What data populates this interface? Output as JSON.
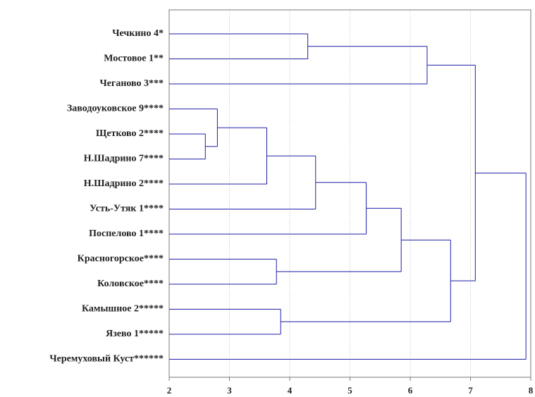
{
  "chart_data": {
    "type": "dendrogram",
    "orientation": "horizontal",
    "grid": true,
    "line_color": "#1f1fa8",
    "grid_color": "#bcbcbc",
    "xlim": [
      2,
      8
    ],
    "x_ticks": [
      2,
      3,
      4,
      5,
      6,
      7,
      8
    ],
    "x_tick_labels": [
      "2",
      "3",
      "4",
      "5",
      "6",
      "7",
      "8"
    ],
    "leaves": [
      "Чечкино 4*",
      "Мостовое 1**",
      "Чеганово 3***",
      "Заводоуковское 9****",
      "Щетково 2****",
      "Н.Шадрино 7****",
      "Н.Шадрино 2****",
      "Усть-Утяк 1****",
      "Поспелово 1****",
      "Красногорское****",
      "Коловское****",
      "Камышное 2*****",
      "Язево 1*****",
      "Черемуховый Куст******"
    ],
    "merges": [
      {
        "a": 4,
        "b": 5,
        "distance": 2.6
      },
      {
        "a": 3,
        "b": 14,
        "distance": 2.8
      },
      {
        "a": 15,
        "b": 6,
        "distance": 3.62
      },
      {
        "a": 9,
        "b": 10,
        "distance": 3.78
      },
      {
        "a": 11,
        "b": 12,
        "distance": 3.85
      },
      {
        "a": 0,
        "b": 1,
        "distance": 4.3
      },
      {
        "a": 16,
        "b": 7,
        "distance": 4.43
      },
      {
        "a": 20,
        "b": 8,
        "distance": 5.27
      },
      {
        "a": 21,
        "b": 17,
        "distance": 5.85
      },
      {
        "a": 2,
        "b": 19,
        "distance": 6.28
      },
      {
        "a": 22,
        "b": 18,
        "distance": 6.67
      },
      {
        "a": 23,
        "b": 24,
        "distance": 7.08
      },
      {
        "a": 25,
        "b": 13,
        "distance": 7.92
      }
    ]
  }
}
